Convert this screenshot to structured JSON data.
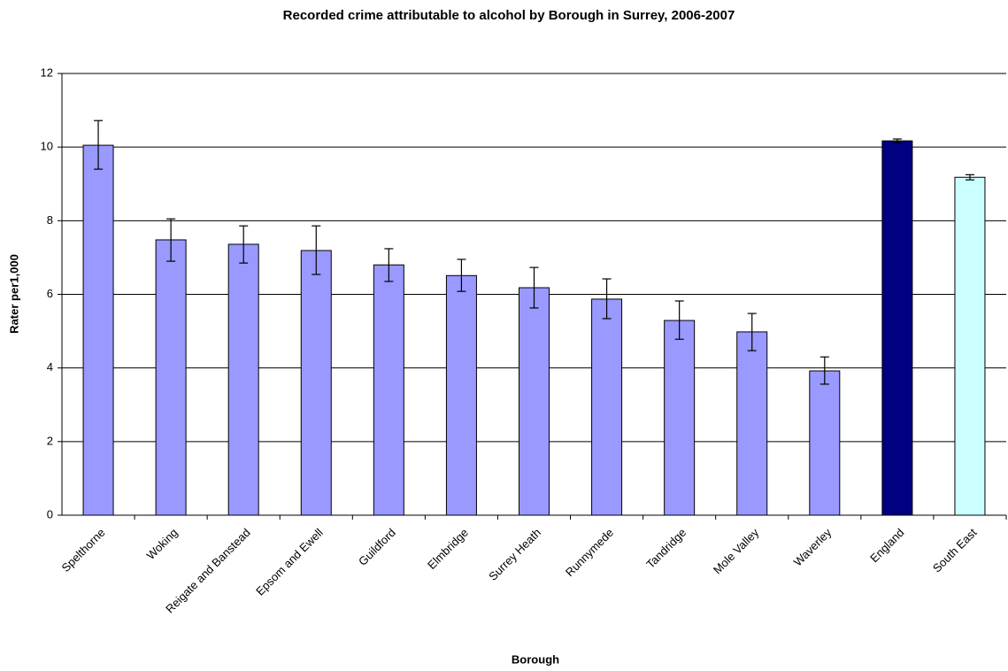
{
  "chart_data": {
    "type": "bar",
    "title": "Recorded crime attributable to alcohol by Borough in Surrey, 2006-2007",
    "x_label": "Borough",
    "y_label": "Rater per1,000",
    "categories": [
      "Spelthorne",
      "Woking",
      "Reigate and Banstead",
      "Epsom and Ewell",
      "Guildford",
      "Elmbridge",
      "Surrey Heath",
      "Runnymede",
      "Tandridge",
      "Mole Valley",
      "Waverley",
      "England",
      "South East"
    ],
    "values": [
      10.05,
      7.48,
      7.36,
      7.19,
      6.8,
      6.51,
      6.18,
      5.87,
      5.29,
      4.98,
      3.92,
      10.17,
      9.18
    ],
    "ci_low": [
      9.4,
      6.9,
      6.85,
      6.54,
      6.35,
      6.08,
      5.63,
      5.34,
      4.78,
      4.47,
      3.56,
      10.12,
      9.11
    ],
    "ci_high": [
      10.72,
      8.05,
      7.86,
      7.86,
      7.24,
      6.95,
      6.73,
      6.42,
      5.82,
      5.48,
      4.3,
      10.22,
      9.25
    ],
    "colors": [
      "#9999ff",
      "#9999ff",
      "#9999ff",
      "#9999ff",
      "#9999ff",
      "#9999ff",
      "#9999ff",
      "#9999ff",
      "#9999ff",
      "#9999ff",
      "#9999ff",
      "#000080",
      "#ccffff"
    ],
    "ylim": [
      0,
      12
    ],
    "yticks": [
      0,
      2,
      4,
      6,
      8,
      10,
      12
    ],
    "grid": true
  }
}
